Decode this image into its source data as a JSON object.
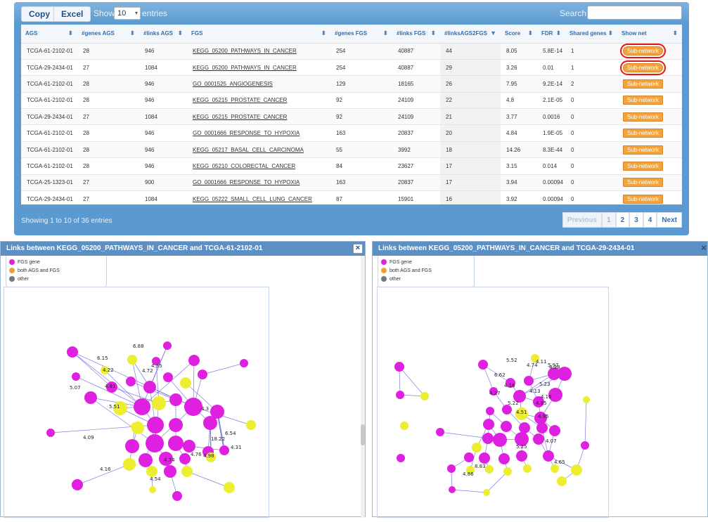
{
  "toolbar": {
    "copy_label": "Copy",
    "excel_label": "Excel",
    "show_label": "Show",
    "page_size": "10",
    "entries_label": "entries",
    "search_label": "Search:",
    "search_value": ""
  },
  "table": {
    "columns": [
      "AGS",
      "#genes AGS",
      "#links AGS",
      "FGS",
      "#genes FGS",
      "#links FGS",
      "#linksAGS2FGS",
      "Score",
      "FDR",
      "Shared genes",
      "Show net"
    ],
    "sorted_column": "#linksAGS2FGS",
    "subnet_label": "Sub-network",
    "rows": [
      {
        "ags": "TCGA-61-2102-01",
        "genes_ags": "28",
        "links_ags": "946",
        "fgs": "KEGG_05200_PATHWAYS_IN_CANCER",
        "genes_fgs": "254",
        "links_fgs": "40887",
        "links_ags2fgs": "44",
        "score": "8.05",
        "fdr": "5.8E-14",
        "shared": "1"
      },
      {
        "ags": "TCGA-29-2434-01",
        "genes_ags": "27",
        "links_ags": "1084",
        "fgs": "KEGG_05200_PATHWAYS_IN_CANCER",
        "genes_fgs": "254",
        "links_fgs": "40887",
        "links_ags2fgs": "29",
        "score": "3.26",
        "fdr": "0.01",
        "shared": "1"
      },
      {
        "ags": "TCGA-61-2102-01",
        "genes_ags": "28",
        "links_ags": "946",
        "fgs": "GO_0001525_ANGIOGENESIS",
        "genes_fgs": "129",
        "links_fgs": "18165",
        "links_ags2fgs": "26",
        "score": "7.95",
        "fdr": "9.2E-14",
        "shared": "2"
      },
      {
        "ags": "TCGA-61-2102-01",
        "genes_ags": "28",
        "links_ags": "946",
        "fgs": "KEGG_05215_PROSTATE_CANCER",
        "genes_fgs": "92",
        "links_fgs": "24109",
        "links_ags2fgs": "22",
        "score": "4.8",
        "fdr": "2.1E-05",
        "shared": "0"
      },
      {
        "ags": "TCGA-29-2434-01",
        "genes_ags": "27",
        "links_ags": "1084",
        "fgs": "KEGG_05215_PROSTATE_CANCER",
        "genes_fgs": "92",
        "links_fgs": "24109",
        "links_ags2fgs": "21",
        "score": "3.77",
        "fdr": "0.0016",
        "shared": "0"
      },
      {
        "ags": "TCGA-61-2102-01",
        "genes_ags": "28",
        "links_ags": "946",
        "fgs": "GO_0001666_RESPONSE_TO_HYPOXIA",
        "genes_fgs": "163",
        "links_fgs": "20837",
        "links_ags2fgs": "20",
        "score": "4.84",
        "fdr": "1.9E-05",
        "shared": "0"
      },
      {
        "ags": "TCGA-61-2102-01",
        "genes_ags": "28",
        "links_ags": "946",
        "fgs": "KEGG_05217_BASAL_CELL_CARCINOMA",
        "genes_fgs": "55",
        "links_fgs": "3992",
        "links_ags2fgs": "18",
        "score": "14.26",
        "fdr": "8.3E-44",
        "shared": "0"
      },
      {
        "ags": "TCGA-61-2102-01",
        "genes_ags": "28",
        "links_ags": "946",
        "fgs": "KEGG_05210_COLORECTAL_CANCER",
        "genes_fgs": "84",
        "links_fgs": "23627",
        "links_ags2fgs": "17",
        "score": "3.15",
        "fdr": "0.014",
        "shared": "0"
      },
      {
        "ags": "TCGA-25-1323-01",
        "genes_ags": "27",
        "links_ags": "900",
        "fgs": "GO_0001666_RESPONSE_TO_HYPOXIA",
        "genes_fgs": "163",
        "links_fgs": "20837",
        "links_ags2fgs": "17",
        "score": "3.94",
        "fdr": "0.00094",
        "shared": "0"
      },
      {
        "ags": "TCGA-29-2434-01",
        "genes_ags": "27",
        "links_ags": "1084",
        "fgs": "KEGG_05222_SMALL_CELL_LUNG_CANCER",
        "genes_fgs": "87",
        "links_fgs": "15901",
        "links_ags2fgs": "16",
        "score": "3.92",
        "fdr": "0.00094",
        "shared": "0"
      }
    ]
  },
  "footer": {
    "info": "Showing 1 to 10 of 36 entries",
    "previous_label": "Previous",
    "next_label": "Next",
    "pages": [
      "1",
      "2",
      "3",
      "4"
    ],
    "current_page": "1"
  },
  "panels": {
    "left": {
      "title": "Links between KEGG_05200_PATHWAYS_IN_CANCER and TCGA-61-2102-01",
      "close_label": "×"
    },
    "right": {
      "title": "Links between KEGG_05200_PATHWAYS_IN_CANCER and TCGA-29-2434-01",
      "close_label": "×"
    },
    "legend": [
      {
        "label": "FGS gene",
        "color": "#e020e0"
      },
      {
        "label": "both AGS and FGS",
        "color": "#f0a030"
      },
      {
        "label": "other",
        "color": "#777777"
      }
    ]
  },
  "colors": {
    "fgs_node": "#e020e0",
    "ags_node": "#eeee30",
    "edge": "#5555dd",
    "highlight": "#e01818",
    "accent": "#5a9ad0",
    "button": "#f4a33c"
  },
  "networks": {
    "left": {
      "edge_labels": [
        "6.15",
        "6.88",
        "4.72",
        "4.22",
        "4.35",
        "4.81",
        "5.51",
        "4.09",
        "4.3",
        "6.54",
        "18.22",
        "4.31",
        "4.74",
        "4.16",
        "4.98",
        "4.54",
        "4.76",
        "5.07"
      ]
    },
    "right": {
      "edge_labels": [
        "5.52",
        "4.74",
        "5.97",
        "4.11",
        "4.38",
        "6.62",
        "4.16",
        "5.23",
        "4.27",
        "4.13",
        "4.16",
        "4.85",
        "5.22",
        "4.51",
        "4.95",
        "4.07",
        "5.25",
        "8.83",
        "4.86",
        "4.65"
      ]
    }
  }
}
